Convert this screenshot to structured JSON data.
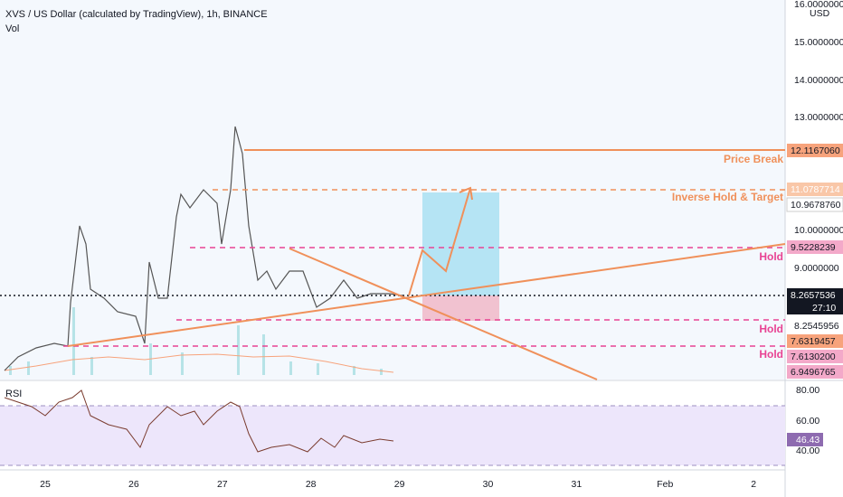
{
  "header": {
    "title": "XVS / US Dollar (calculated by TradingView), 1h, BINANCE",
    "volume_label": "Vol"
  },
  "price_axis": {
    "currency": "USD",
    "labels": [
      "16.0000000",
      "15.0000000",
      "14.0000000",
      "13.0000000",
      "10.0000000",
      "9.0000000",
      "8.2545956"
    ],
    "badges": [
      "12.1167060",
      "11.0787714",
      "10.9678760",
      "9.5228239",
      "8.2657536",
      "27:10",
      "7.6319457",
      "7.6130200",
      "6.9496765"
    ]
  },
  "annotations": [
    "Price Break",
    "Inverse Hold & Target",
    "Hold",
    "Hold",
    "Hold"
  ],
  "rsi": {
    "label": "RSI",
    "labels": [
      "80.00",
      "60.00",
      "40.00"
    ],
    "badge": "46.43"
  },
  "time_axis": [
    "25",
    "26",
    "27",
    "28",
    "29",
    "30",
    "31",
    "Feb",
    "2"
  ]
}
